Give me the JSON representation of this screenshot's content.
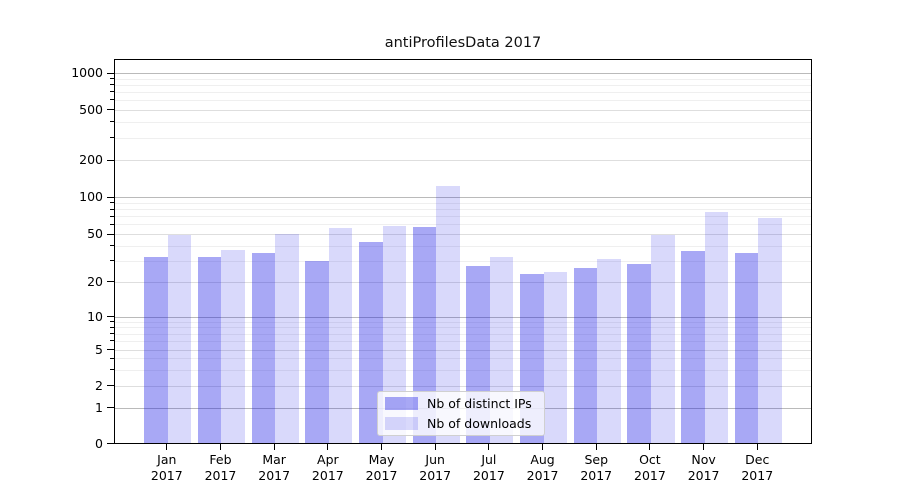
{
  "chart_data": {
    "type": "bar",
    "title": "antiProfilesData 2017",
    "categories": [
      "Jan 2017",
      "Feb 2017",
      "Mar 2017",
      "Apr 2017",
      "May 2017",
      "Jun 2017",
      "Jul 2017",
      "Aug 2017",
      "Sep 2017",
      "Oct 2017",
      "Nov 2017",
      "Dec 2017"
    ],
    "series": [
      {
        "name": "Nb of distinct IPs",
        "color": "rgba(20,20,228,0.37)",
        "values": [
          32,
          32,
          35,
          30,
          43,
          57,
          27,
          23,
          26,
          28,
          36,
          35
        ]
      },
      {
        "name": "Nb of downloads",
        "color": "rgba(20,20,228,0.16)",
        "values": [
          49,
          37,
          50,
          56,
          58,
          122,
          32,
          24,
          31,
          49,
          76,
          68
        ]
      }
    ],
    "y_axis": {
      "scale": "symlog",
      "ticks": [
        0,
        1,
        2,
        5,
        10,
        20,
        50,
        100,
        200,
        500,
        1000
      ]
    },
    "x_axis": {
      "tick_label_lines": 2
    },
    "grid": true,
    "legend_position": "lower center",
    "colors": {
      "bars_distinct_ips": "#ababf4",
      "bars_downloads": "#d9d9f9",
      "grid_major": "#bababa",
      "grid_minor": "#efefef",
      "spine": "#000000"
    }
  }
}
